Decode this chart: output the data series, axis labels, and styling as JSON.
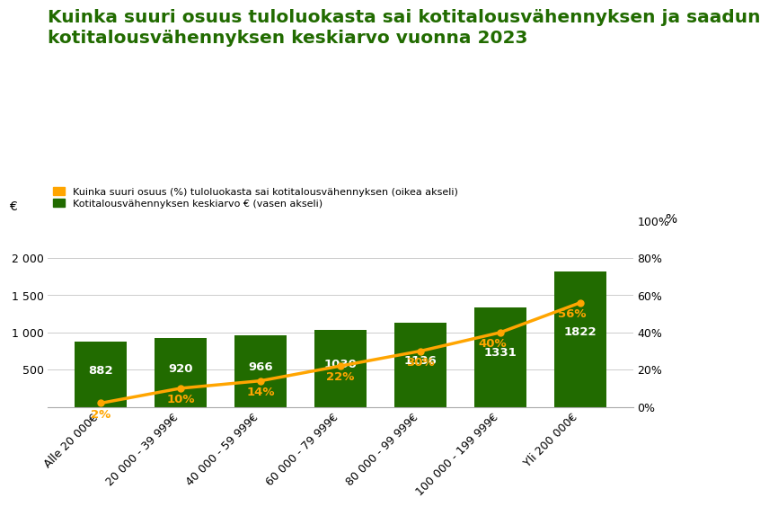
{
  "title": "Kuinka suuri osuus tuloluokasta sai kotitalousvähennyksen ja saadun\nkotitalousvähennyksen keskiarvo vuonna 2023",
  "categories": [
    "Alle 20 000€",
    "20 000 - 39 999€",
    "40 000 - 59 999€",
    "60 000 - 79 999€",
    "80 000 - 99 999€",
    "100 000 - 199 999€",
    "Yli 200 000€"
  ],
  "bar_values": [
    882,
    920,
    966,
    1030,
    1136,
    1331,
    1822
  ],
  "line_values": [
    2,
    10,
    14,
    22,
    30,
    40,
    56
  ],
  "bar_color": "#216B00",
  "line_color": "#FFA500",
  "bar_label_color": "#FFFFFF",
  "line_label_color": "#FFA500",
  "ylabel_left": "€",
  "ylabel_right": "%",
  "ylim_left": [
    0,
    2500
  ],
  "ylim_right": [
    0,
    100
  ],
  "yticks_left": [
    0,
    500,
    1000,
    1500,
    2000
  ],
  "yticks_right": [
    0,
    20,
    40,
    60,
    80,
    100
  ],
  "ytick_labels_right": [
    "0%",
    "20%",
    "40%",
    "60%",
    "80%",
    "100%"
  ],
  "legend_line_label": "Kuinka suuri osuus (%) tuloluokasta sai kotitalousvähennyksen (oikea akseli)",
  "legend_bar_label": "Kotitalousvähennyksen keskiarvo € (vasen akseli)",
  "title_color": "#216B00",
  "title_fontsize": 14.5,
  "background_color": "#FFFFFF",
  "bar_fontsize": 9.5,
  "line_label_fontsize": 9.5,
  "axis_label_fontsize": 10,
  "tick_fontsize": 9
}
